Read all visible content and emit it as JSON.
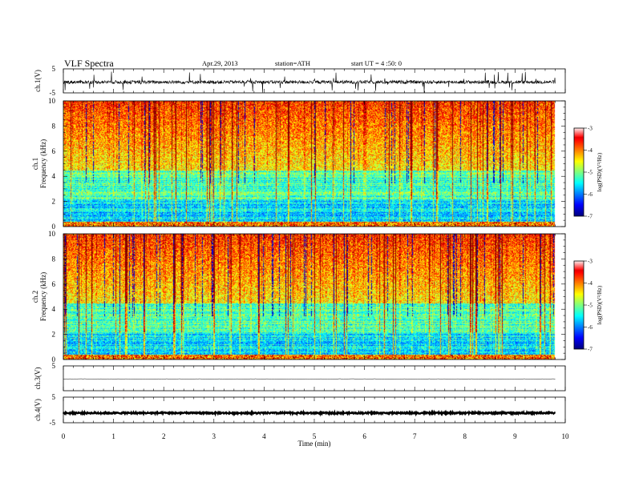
{
  "header": {
    "title": "VLF Spectra",
    "date": "Apr.29, 2013",
    "station": "station=ATH",
    "start": "start UT =  4 :50: 0"
  },
  "chart_data": [
    {
      "type": "line",
      "name": "ch1-waveform",
      "ylabel": "ch.1(V)",
      "ylim": [
        -5,
        5
      ],
      "yticks": [
        "5",
        "-5"
      ],
      "xlim": [
        0,
        10
      ]
    },
    {
      "type": "heatmap",
      "name": "ch1-spectrogram",
      "ylabel_channel": "ch.1",
      "ylabel": "Frequency (kHz)",
      "ylim": [
        0,
        10
      ],
      "yticks": [
        "0",
        "2",
        "4",
        "6",
        "8",
        "10"
      ],
      "xlim": [
        0,
        10
      ],
      "data_end_min": 9.8,
      "colorbar": {
        "label": "log(PSD)(V²/Hz)",
        "range": [
          -7,
          -3
        ],
        "ticks": [
          "-3",
          "-4",
          "-5",
          "-6",
          "-7"
        ]
      }
    },
    {
      "type": "heatmap",
      "name": "ch2-spectrogram",
      "ylabel_channel": "ch.2",
      "ylabel": "Frequency (kHz)",
      "ylim": [
        0,
        10
      ],
      "yticks": [
        "0",
        "2",
        "4",
        "6",
        "8",
        "10"
      ],
      "xlim": [
        0,
        10
      ],
      "data_end_min": 9.8,
      "colorbar": {
        "label": "log(PSD)(V²/Hz)",
        "range": [
          -7,
          -3
        ],
        "ticks": [
          "-3",
          "-4",
          "-5",
          "-6",
          "-7"
        ]
      }
    },
    {
      "type": "line",
      "name": "ch3-waveform",
      "ylabel": "ch.3(V)",
      "ylim": [
        -5,
        5
      ],
      "yticks": [
        "5"
      ],
      "xlim": [
        0,
        10
      ]
    },
    {
      "type": "line",
      "name": "ch4-waveform",
      "ylabel": "ch.4(V)",
      "ylim": [
        -5,
        5
      ],
      "yticks": [
        "5",
        "-5"
      ],
      "xlim": [
        0,
        10
      ],
      "xlabel": "Time (min)",
      "xticks": [
        "0",
        "1",
        "2",
        "3",
        "4",
        "5",
        "6",
        "7",
        "8",
        "9",
        "10"
      ]
    }
  ]
}
